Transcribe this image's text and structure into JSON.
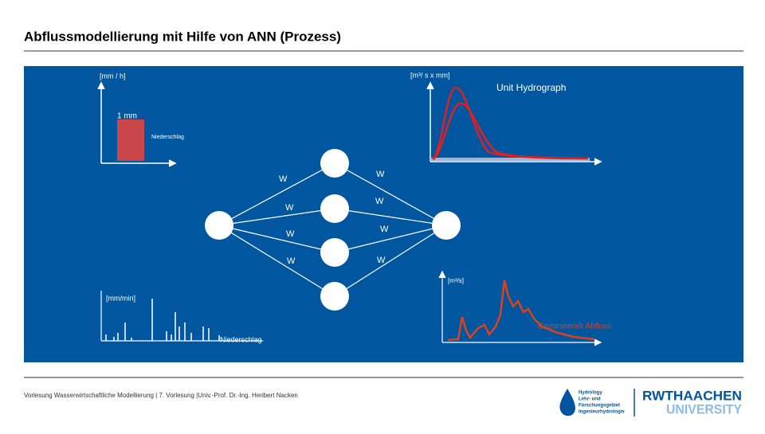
{
  "header": {
    "title": "Abflussmodellierung mit Hilfe von ANN (Prozess)"
  },
  "unit_hydrograph": {
    "x_unit": "[mm / h]",
    "pulse": "1 mm",
    "pulse_label": "Niederschlag",
    "y_unit": "[m³/ s x mm]",
    "label": "Unit Hydrograph"
  },
  "network": {
    "weights": [
      "W",
      "W",
      "W",
      "W",
      "W",
      "W",
      "W",
      "W"
    ]
  },
  "rain_series": {
    "y_unit": "[mm/min]",
    "label": "Niederschlag"
  },
  "runoff_series": {
    "y_unit": "[m³/s]",
    "label": "Gemessener Abfluss"
  },
  "footer": {
    "text": "Vorlesung Wasserwirtschaftliche Modellierung | 7. Vorlesung |Univ.-Prof. Dr.-Ing. Heribert Nacken",
    "logo_left": [
      "Hydrology",
      "Lehr- und",
      "Forschungsgebiet",
      "Ingenieurhydrologie"
    ],
    "logo_right": [
      "RWTHAACHEN",
      "UNIVERSITY"
    ]
  }
}
